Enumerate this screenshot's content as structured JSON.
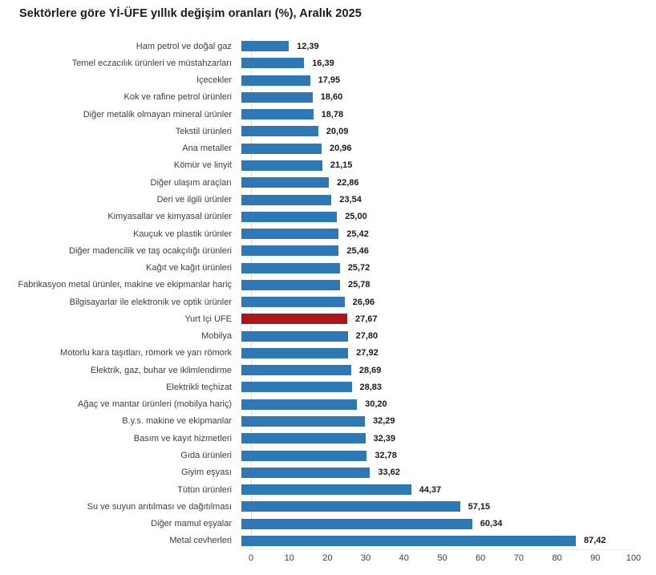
{
  "title": "Sektörlere göre Yİ-ÜFE yıllık değişim oranları (%), Aralık 2025",
  "colors": {
    "bar": "#2E79B5",
    "highlight_bar": "#AC151B",
    "axis_line": "#D9D9D9",
    "title_text": "#1A1A1A",
    "value_text": "#1A1A1A",
    "category_text": "#3D3D3D"
  },
  "chart_data": {
    "type": "bar",
    "orientation": "horizontal",
    "title": "Sektörlere göre Yİ-ÜFE yıllık değişim oranları (%), Aralık 2025",
    "xlabel": "",
    "ylabel": "",
    "xlim": [
      0,
      100
    ],
    "x_ticks": [
      0,
      10,
      20,
      30,
      40,
      50,
      60,
      70,
      80,
      90,
      100
    ],
    "grid": false,
    "legend": "none",
    "decimal_separator": ",",
    "highlight_category": "Yurt İçi ÜFE",
    "highlight_index": 16,
    "categories": [
      "Ham petrol ve doğal gaz",
      "Temel eczacılık ürünleri ve müstahzarları",
      "İçecekler",
      "Kok ve rafine petrol ürünleri",
      "Diğer metalik olmayan mineral ürünler",
      "Tekstil ürünleri",
      "Ana metaller",
      "Kömür ve linyit",
      "Diğer ulaşım araçları",
      "Deri ve ilgili ürünler",
      "Kimyasallar ve kimyasal ürünler",
      "Kauçuk ve plastik ürünler",
      "Diğer madencilik ve taş ocakçılığı ürünleri",
      "Kağıt ve kağıt ürünleri",
      "Fabrikasyon metal ürünler, makine ve ekipmanlar hariç",
      "Bilgisayarlar ile elektronik ve optik ürünler",
      "Yurt İçi ÜFE",
      "Mobilya",
      "Motorlu kara taşıtları, römork ve yarı römork",
      "Elektrik, gaz, buhar ve iklimlendirme",
      "Elektrikli teçhizat",
      "Ağaç ve mantar ürünleri (mobilya hariç)",
      "B.y.s. makine ve ekipmanlar",
      "Basım ve kayıt hizmetleri",
      "Gıda ürünleri",
      "Giyim eşyası",
      "Tütün ürünleri",
      "Su ve suyun arıtılması ve dağıtılması",
      "Diğer mamul eşyalar",
      "Metal cevherleri"
    ],
    "values": [
      12.39,
      16.39,
      17.95,
      18.6,
      18.78,
      20.09,
      20.96,
      21.15,
      22.86,
      23.54,
      25.0,
      25.42,
      25.46,
      25.72,
      25.78,
      26.96,
      27.67,
      27.8,
      27.92,
      28.69,
      28.83,
      30.2,
      32.29,
      32.39,
      32.78,
      33.62,
      44.37,
      57.15,
      60.34,
      87.42
    ],
    "value_labels": [
      "12,39",
      "16,39",
      "17,95",
      "18,60",
      "18,78",
      "20,09",
      "20,96",
      "21,15",
      "22,86",
      "23,54",
      "25,00",
      "25,42",
      "25,46",
      "25,72",
      "25,78",
      "26,96",
      "27,67",
      "27,80",
      "27,92",
      "28,69",
      "28,83",
      "30,20",
      "32,29",
      "32,39",
      "32,78",
      "33,62",
      "44,37",
      "57,15",
      "60,34",
      "87,42"
    ]
  }
}
